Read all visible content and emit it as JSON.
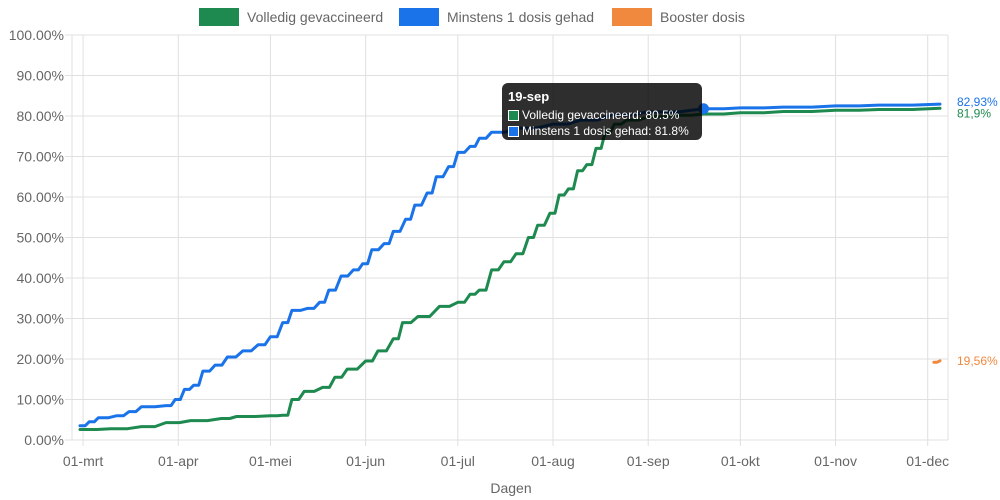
{
  "chart_data": {
    "type": "line",
    "xlabel": "Dagen",
    "ylabel": "",
    "ylim": [
      0,
      100
    ],
    "y_ticks": [
      "0.00%",
      "10.00%",
      "20.00%",
      "30.00%",
      "40.00%",
      "50.00%",
      "60.00%",
      "70.00%",
      "80.00%",
      "90.00%",
      "100.00%"
    ],
    "x_ticks": [
      "01-mrt",
      "01-apr",
      "01-mei",
      "01-jun",
      "01-jul",
      "01-aug",
      "01-sep",
      "01-okt",
      "01-nov",
      "01-dec"
    ],
    "grid": true,
    "legend_position": "top",
    "series": [
      {
        "name": "Volledig gevaccineerd",
        "color": "#1e8a4f",
        "end_label": "81,9%",
        "points": [
          [
            "2021-02-28",
            2.6
          ],
          [
            "2021-03-10",
            2.8
          ],
          [
            "2021-03-20",
            3.3
          ],
          [
            "2021-03-28",
            4.3
          ],
          [
            "2021-04-05",
            4.8
          ],
          [
            "2021-04-15",
            5.3
          ],
          [
            "2021-04-20",
            5.8
          ],
          [
            "2021-05-01",
            6.0
          ],
          [
            "2021-05-05",
            6.1
          ],
          [
            "2021-05-08",
            10.0
          ],
          [
            "2021-05-12",
            12.0
          ],
          [
            "2021-05-18",
            13.0
          ],
          [
            "2021-05-22",
            15.5
          ],
          [
            "2021-05-26",
            17.5
          ],
          [
            "2021-06-01",
            19.5
          ],
          [
            "2021-06-05",
            22.0
          ],
          [
            "2021-06-10",
            25.0
          ],
          [
            "2021-06-13",
            29.0
          ],
          [
            "2021-06-18",
            30.5
          ],
          [
            "2021-06-25",
            33.0
          ],
          [
            "2021-07-01",
            34.0
          ],
          [
            "2021-07-05",
            36.0
          ],
          [
            "2021-07-08",
            37.0
          ],
          [
            "2021-07-12",
            42.0
          ],
          [
            "2021-07-16",
            44.0
          ],
          [
            "2021-07-20",
            46.0
          ],
          [
            "2021-07-24",
            50.0
          ],
          [
            "2021-07-27",
            53.0
          ],
          [
            "2021-07-31",
            56.0
          ],
          [
            "2021-08-03",
            60.5
          ],
          [
            "2021-08-06",
            62.0
          ],
          [
            "2021-08-09",
            66.5
          ],
          [
            "2021-08-12",
            68.0
          ],
          [
            "2021-08-15",
            72.0
          ],
          [
            "2021-08-18",
            76.0
          ],
          [
            "2021-08-21",
            78.0
          ],
          [
            "2021-08-25",
            79.0
          ],
          [
            "2021-09-01",
            79.8
          ],
          [
            "2021-09-10",
            80.2
          ],
          [
            "2021-09-19",
            80.5
          ],
          [
            "2021-10-01",
            80.8
          ],
          [
            "2021-10-15",
            81.1
          ],
          [
            "2021-11-01",
            81.4
          ],
          [
            "2021-11-15",
            81.6
          ],
          [
            "2021-12-05",
            81.9
          ]
        ]
      },
      {
        "name": "Minstens 1 dosis gehad",
        "color": "#1a73e8",
        "end_label": "82,93%",
        "points": [
          [
            "2021-02-28",
            3.5
          ],
          [
            "2021-03-03",
            4.5
          ],
          [
            "2021-03-06",
            5.5
          ],
          [
            "2021-03-12",
            6.0
          ],
          [
            "2021-03-16",
            7.0
          ],
          [
            "2021-03-20",
            8.2
          ],
          [
            "2021-03-28",
            8.5
          ],
          [
            "2021-03-31",
            10.0
          ],
          [
            "2021-04-03",
            12.5
          ],
          [
            "2021-04-06",
            13.5
          ],
          [
            "2021-04-09",
            17.0
          ],
          [
            "2021-04-13",
            18.5
          ],
          [
            "2021-04-17",
            20.5
          ],
          [
            "2021-04-22",
            22.0
          ],
          [
            "2021-04-27",
            23.5
          ],
          [
            "2021-05-01",
            25.5
          ],
          [
            "2021-05-05",
            29.0
          ],
          [
            "2021-05-08",
            32.0
          ],
          [
            "2021-05-13",
            32.5
          ],
          [
            "2021-05-17",
            34.0
          ],
          [
            "2021-05-20",
            37.0
          ],
          [
            "2021-05-24",
            40.5
          ],
          [
            "2021-05-28",
            42.0
          ],
          [
            "2021-05-31",
            43.5
          ],
          [
            "2021-06-03",
            47.0
          ],
          [
            "2021-06-07",
            48.5
          ],
          [
            "2021-06-10",
            51.5
          ],
          [
            "2021-06-14",
            54.5
          ],
          [
            "2021-06-17",
            58.0
          ],
          [
            "2021-06-21",
            61.0
          ],
          [
            "2021-06-24",
            65.0
          ],
          [
            "2021-06-28",
            67.5
          ],
          [
            "2021-07-01",
            71.0
          ],
          [
            "2021-07-05",
            72.5
          ],
          [
            "2021-07-08",
            74.5
          ],
          [
            "2021-07-12",
            76.0
          ],
          [
            "2021-07-20",
            77.0
          ],
          [
            "2021-08-01",
            78.0
          ],
          [
            "2021-08-10",
            79.0
          ],
          [
            "2021-08-20",
            80.3
          ],
          [
            "2021-09-01",
            81.0
          ],
          [
            "2021-09-19",
            81.8
          ],
          [
            "2021-10-01",
            82.0
          ],
          [
            "2021-10-15",
            82.2
          ],
          [
            "2021-11-01",
            82.5
          ],
          [
            "2021-11-15",
            82.7
          ],
          [
            "2021-12-05",
            82.93
          ]
        ]
      },
      {
        "name": "Booster dosis",
        "color": "#f0883e",
        "end_label": "19,56%",
        "points": [
          [
            "2021-12-03",
            19.2
          ],
          [
            "2021-12-05",
            19.56
          ]
        ]
      }
    ],
    "tooltip": {
      "title": "19-sep",
      "rows": [
        {
          "label": "Volledig gevaccineerd: 80.5%",
          "color": "#1e8a4f"
        },
        {
          "label": "Minstens 1 dosis gehad: 81.8%",
          "color": "#1a73e8"
        }
      ],
      "x": "2021-09-19",
      "y": 81.8
    }
  }
}
